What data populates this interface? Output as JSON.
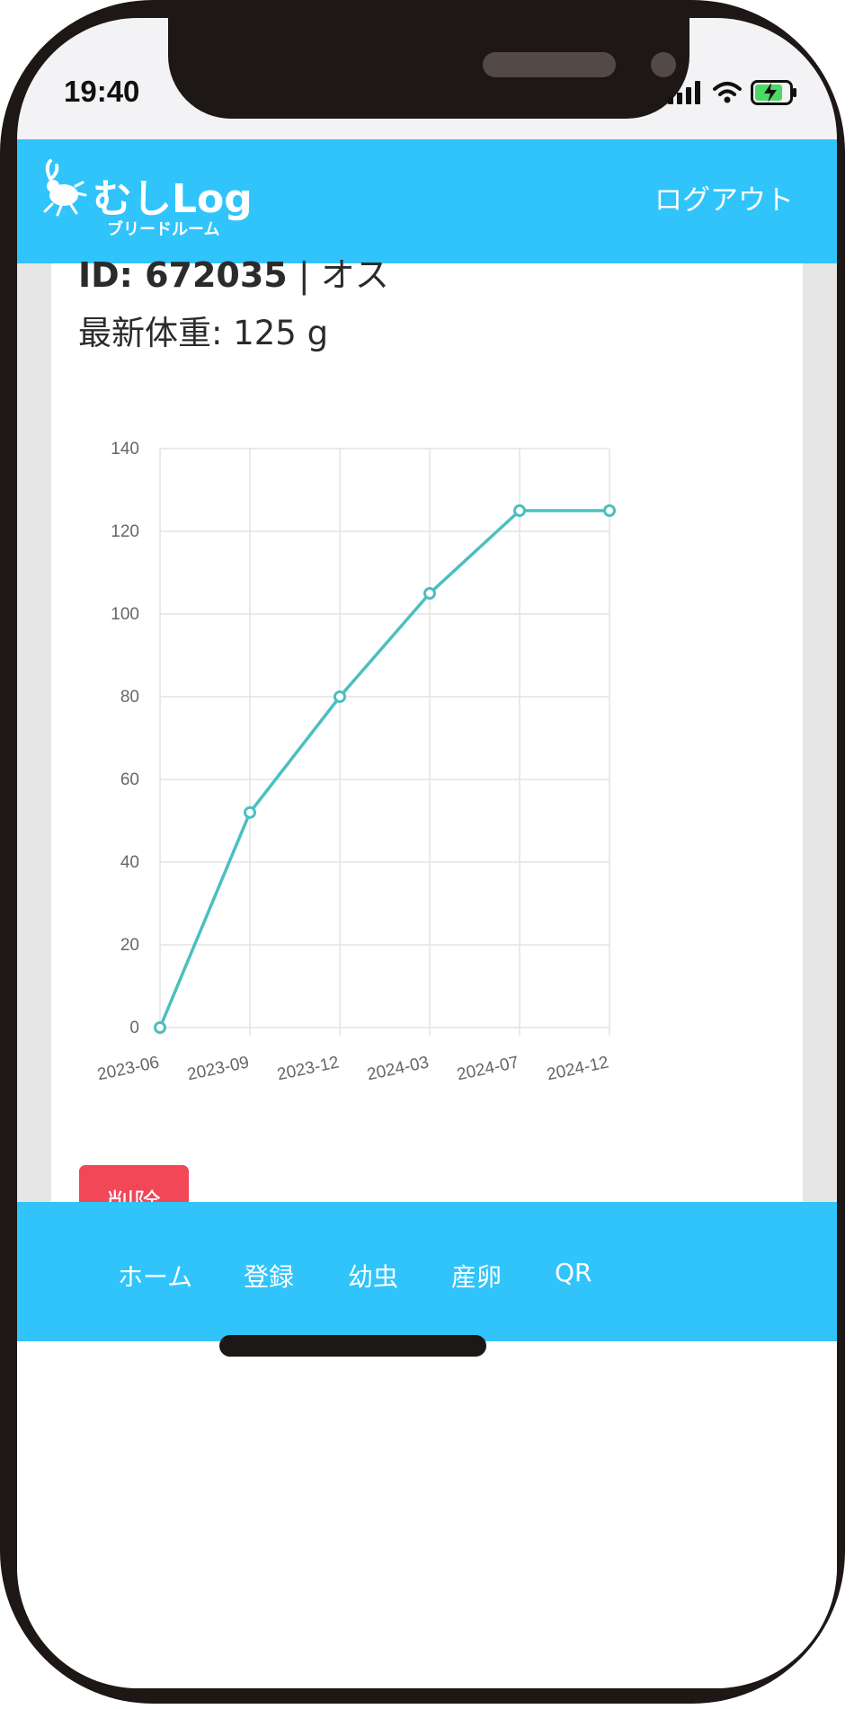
{
  "status_bar": {
    "time": "19:40"
  },
  "header": {
    "logo_main": "むしLog",
    "logo_sub": "ブリードルーム",
    "logout_label": "ログアウト",
    "background_color": "#30c4fb"
  },
  "detail": {
    "id_label": "ID: 672035",
    "separator": " | ",
    "sex": "オス",
    "latest_weight_label": "最新体重: 125 g"
  },
  "chart_data": {
    "type": "line",
    "x": [
      "2023-06",
      "2023-09",
      "2023-12",
      "2024-03",
      "2024-07",
      "2024-12"
    ],
    "y": [
      0,
      52,
      80,
      105,
      125,
      125
    ],
    "y_ticks": [
      "0",
      "20",
      "40",
      "60",
      "80",
      "100",
      "120",
      "140"
    ],
    "ylim": [
      0,
      140
    ],
    "grid": true,
    "line_color": "#4bbfc0"
  },
  "actions": {
    "delete_label": "削除",
    "delete_color": "#f14757"
  },
  "bottom_nav": {
    "items": [
      {
        "label": "ホーム"
      },
      {
        "label": "登録"
      },
      {
        "label": "幼虫"
      },
      {
        "label": "産卵"
      },
      {
        "label": "QR"
      }
    ]
  }
}
